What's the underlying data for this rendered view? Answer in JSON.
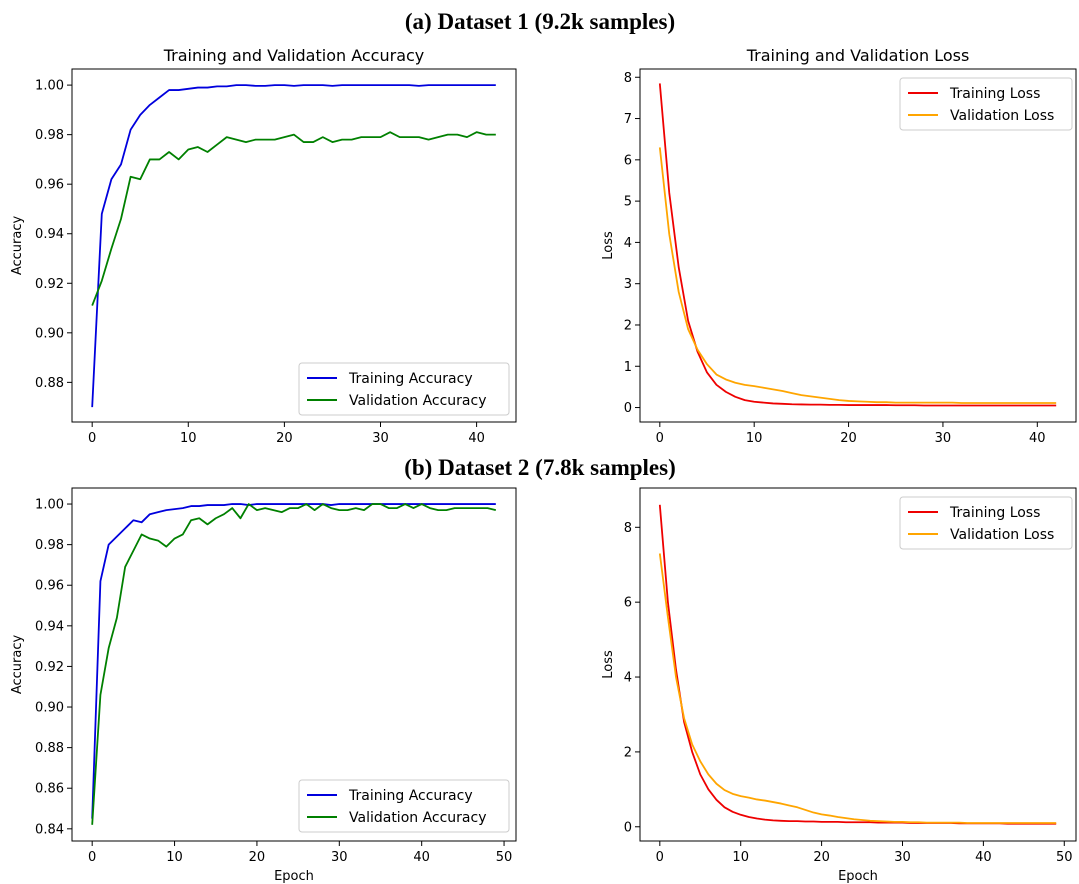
{
  "figure": {
    "section_a_title": "(a) Dataset 1 (9.2k samples)",
    "section_b_title": "(b) Dataset 2 (7.8k samples)"
  },
  "colors": {
    "training_accuracy": "#0000dd",
    "validation_accuracy": "#008000",
    "training_loss": "#ee0000",
    "validation_loss": "#ffa500"
  },
  "chart_data": [
    {
      "id": "a_acc",
      "type": "line",
      "title": "Training and Validation Accuracy",
      "xlabel": "",
      "ylabel": "Accuracy",
      "xlim": [
        -2.1,
        44.1
      ],
      "ylim": [
        0.864,
        1.0065
      ],
      "xticks": [
        0,
        10,
        20,
        30,
        40
      ],
      "yticks": [
        0.88,
        0.9,
        0.92,
        0.94,
        0.96,
        0.98,
        1.0
      ],
      "ytick_labels": [
        "0.88",
        "0.90",
        "0.92",
        "0.94",
        "0.96",
        "0.98",
        "1.00"
      ],
      "legend": "lower-right",
      "series": [
        {
          "name": "Training Accuracy",
          "color": "#0000dd",
          "values": [
            0.87,
            0.948,
            0.962,
            0.968,
            0.982,
            0.988,
            0.992,
            0.995,
            0.998,
            0.998,
            0.9985,
            0.999,
            0.999,
            0.9995,
            0.9995,
            1.0,
            1.0,
            0.9997,
            0.9997,
            1.0,
            1.0,
            0.9997,
            1.0,
            1.0,
            1.0,
            0.9997,
            1.0,
            1.0,
            1.0,
            1.0,
            1.0,
            1.0,
            1.0,
            1.0,
            0.9997,
            1.0,
            1.0,
            1.0,
            1.0,
            1.0,
            1.0,
            1.0,
            1.0
          ]
        },
        {
          "name": "Validation Accuracy",
          "color": "#008000",
          "values": [
            0.911,
            0.921,
            0.934,
            0.946,
            0.963,
            0.962,
            0.97,
            0.97,
            0.973,
            0.97,
            0.974,
            0.975,
            0.973,
            0.976,
            0.979,
            0.978,
            0.977,
            0.978,
            0.978,
            0.978,
            0.979,
            0.98,
            0.977,
            0.977,
            0.979,
            0.977,
            0.978,
            0.978,
            0.979,
            0.979,
            0.979,
            0.981,
            0.979,
            0.979,
            0.979,
            0.978,
            0.979,
            0.98,
            0.98,
            0.979,
            0.981,
            0.98,
            0.98
          ]
        }
      ]
    },
    {
      "id": "a_loss",
      "type": "line",
      "title": "Training and Validation Loss",
      "xlabel": "",
      "ylabel": "Loss",
      "xlim": [
        -2.1,
        44.1
      ],
      "ylim": [
        -0.35,
        8.2
      ],
      "xticks": [
        0,
        10,
        20,
        30,
        40
      ],
      "yticks": [
        0,
        1,
        2,
        3,
        4,
        5,
        6,
        7,
        8
      ],
      "ytick_labels": [
        "0",
        "1",
        "2",
        "3",
        "4",
        "5",
        "6",
        "7",
        "8"
      ],
      "legend": "upper-right",
      "series": [
        {
          "name": "Training Loss",
          "color": "#ee0000",
          "values": [
            7.85,
            5.2,
            3.4,
            2.1,
            1.35,
            0.85,
            0.55,
            0.38,
            0.26,
            0.18,
            0.14,
            0.12,
            0.1,
            0.09,
            0.08,
            0.075,
            0.07,
            0.07,
            0.065,
            0.065,
            0.06,
            0.06,
            0.06,
            0.06,
            0.06,
            0.055,
            0.055,
            0.055,
            0.05,
            0.05,
            0.05,
            0.05,
            0.05,
            0.05,
            0.05,
            0.05,
            0.05,
            0.05,
            0.05,
            0.05,
            0.05,
            0.05,
            0.05
          ]
        },
        {
          "name": "Validation Loss",
          "color": "#ffa500",
          "values": [
            6.3,
            4.2,
            2.8,
            1.9,
            1.4,
            1.05,
            0.8,
            0.68,
            0.6,
            0.55,
            0.52,
            0.48,
            0.44,
            0.4,
            0.35,
            0.3,
            0.27,
            0.24,
            0.21,
            0.18,
            0.16,
            0.15,
            0.14,
            0.13,
            0.13,
            0.12,
            0.12,
            0.12,
            0.12,
            0.12,
            0.12,
            0.12,
            0.11,
            0.11,
            0.11,
            0.11,
            0.11,
            0.11,
            0.11,
            0.11,
            0.11,
            0.11,
            0.11
          ]
        }
      ]
    },
    {
      "id": "b_acc",
      "type": "line",
      "title": "",
      "xlabel": "Epoch",
      "ylabel": "Accuracy",
      "xlim": [
        -2.45,
        51.45
      ],
      "ylim": [
        0.834,
        1.0079
      ],
      "xticks": [
        0,
        10,
        20,
        30,
        40,
        50
      ],
      "yticks": [
        0.84,
        0.86,
        0.88,
        0.9,
        0.92,
        0.94,
        0.96,
        0.98,
        1.0
      ],
      "ytick_labels": [
        "0.84",
        "0.86",
        "0.88",
        "0.90",
        "0.92",
        "0.94",
        "0.96",
        "0.98",
        "1.00"
      ],
      "legend": "lower-right",
      "series": [
        {
          "name": "Training Accuracy",
          "color": "#0000dd",
          "values": [
            0.845,
            0.962,
            0.98,
            0.984,
            0.988,
            0.992,
            0.991,
            0.995,
            0.996,
            0.997,
            0.9975,
            0.998,
            0.999,
            0.999,
            0.9995,
            0.9995,
            0.9995,
            1.0,
            1.0,
            0.9995,
            1.0,
            1.0,
            1.0,
            1.0,
            1.0,
            1.0,
            1.0,
            1.0,
            1.0,
            0.9995,
            1.0,
            1.0,
            1.0,
            1.0,
            1.0,
            1.0,
            1.0,
            1.0,
            1.0,
            1.0,
            1.0,
            1.0,
            1.0,
            1.0,
            1.0,
            1.0,
            1.0,
            1.0,
            1.0,
            1.0
          ]
        },
        {
          "name": "Validation Accuracy",
          "color": "#008000",
          "values": [
            0.842,
            0.906,
            0.929,
            0.944,
            0.969,
            0.977,
            0.985,
            0.983,
            0.982,
            0.979,
            0.983,
            0.985,
            0.992,
            0.993,
            0.99,
            0.993,
            0.995,
            0.998,
            0.993,
            1.0,
            0.997,
            0.998,
            0.997,
            0.996,
            0.998,
            0.998,
            1.0,
            0.997,
            1.0,
            0.998,
            0.997,
            0.997,
            0.998,
            0.997,
            1.0,
            1.0,
            0.998,
            0.998,
            1.0,
            0.998,
            1.0,
            0.998,
            0.997,
            0.997,
            0.998,
            0.998,
            0.998,
            0.998,
            0.998,
            0.997
          ]
        }
      ]
    },
    {
      "id": "b_loss",
      "type": "line",
      "title": "",
      "xlabel": "Epoch",
      "ylabel": "Loss",
      "xlim": [
        -2.45,
        51.45
      ],
      "ylim": [
        -0.38,
        9.05
      ],
      "xticks": [
        0,
        10,
        20,
        30,
        40,
        50
      ],
      "yticks": [
        0,
        2,
        4,
        6,
        8
      ],
      "ytick_labels": [
        "0",
        "2",
        "4",
        "6",
        "8"
      ],
      "legend": "upper-right",
      "series": [
        {
          "name": "Training Loss",
          "color": "#ee0000",
          "values": [
            8.6,
            6.0,
            4.2,
            2.8,
            2.0,
            1.4,
            1.0,
            0.72,
            0.52,
            0.4,
            0.32,
            0.26,
            0.22,
            0.19,
            0.17,
            0.16,
            0.15,
            0.15,
            0.14,
            0.14,
            0.13,
            0.13,
            0.13,
            0.12,
            0.12,
            0.12,
            0.12,
            0.11,
            0.11,
            0.11,
            0.11,
            0.1,
            0.1,
            0.1,
            0.1,
            0.1,
            0.1,
            0.09,
            0.09,
            0.09,
            0.09,
            0.09,
            0.09,
            0.08,
            0.08,
            0.08,
            0.08,
            0.08,
            0.08,
            0.08
          ]
        },
        {
          "name": "Validation Loss",
          "color": "#ffa500",
          "values": [
            7.3,
            5.6,
            4.0,
            2.9,
            2.2,
            1.75,
            1.4,
            1.15,
            0.98,
            0.88,
            0.82,
            0.78,
            0.73,
            0.7,
            0.66,
            0.62,
            0.57,
            0.52,
            0.45,
            0.38,
            0.33,
            0.3,
            0.26,
            0.23,
            0.2,
            0.18,
            0.16,
            0.15,
            0.14,
            0.13,
            0.13,
            0.12,
            0.12,
            0.11,
            0.11,
            0.11,
            0.11,
            0.11,
            0.1,
            0.1,
            0.1,
            0.1,
            0.1,
            0.1,
            0.1,
            0.1,
            0.1,
            0.1,
            0.1,
            0.1
          ]
        }
      ]
    }
  ]
}
